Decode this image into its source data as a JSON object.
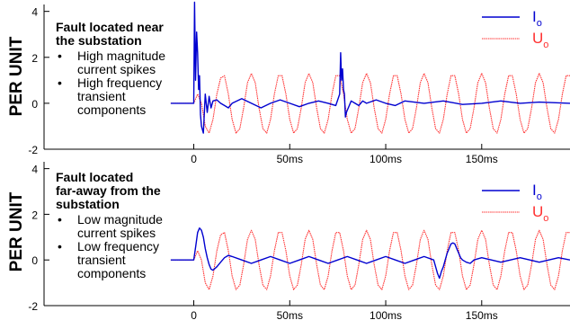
{
  "chart_data": [
    {
      "type": "line",
      "ylabel": "PER UNIT",
      "xlabel": "",
      "ylim": [
        -2,
        4.3
      ],
      "xlim": [
        -78,
        196
      ],
      "y_ticks": [
        "4",
        "2",
        "0",
        "-2"
      ],
      "y_tick_values": [
        4,
        2,
        0,
        -2
      ],
      "x_ticks": [
        "0",
        "50ms",
        "100ms",
        "150ms"
      ],
      "x_tick_values": [
        0,
        50,
        100,
        150
      ],
      "grid": false,
      "legend_position": "top-right",
      "annotation": {
        "heading": [
          "Fault located near",
          "the substation"
        ],
        "bullets": [
          [
            "High magnitude",
            "current spikes"
          ],
          [
            "High frequency",
            "transient",
            "components"
          ]
        ]
      },
      "series": [
        {
          "name": "Io",
          "name_main": "I",
          "name_sub": "o",
          "color": "#0000d0",
          "style": "solid",
          "x": [
            -12,
            -1,
            0,
            0.4,
            0.9,
            1.5,
            2,
            2.5,
            3,
            3.5,
            4,
            5,
            6,
            7,
            8,
            9,
            10,
            12,
            14,
            16,
            18,
            20,
            25,
            30,
            35,
            40,
            45,
            50,
            55,
            60,
            65,
            70,
            74,
            76,
            76.5,
            77,
            77.5,
            78,
            78.5,
            79,
            79.5,
            80,
            81,
            82,
            84,
            86,
            88,
            90,
            95,
            100,
            105,
            110,
            120,
            130,
            140,
            150,
            160,
            170,
            180,
            196
          ],
          "y": [
            0,
            0,
            0,
            4.4,
            1.0,
            3.1,
            2.2,
            0.6,
            1.2,
            -0.5,
            -1.0,
            -1.3,
            0.4,
            -0.4,
            0.3,
            -0.2,
            0.1,
            0.15,
            0,
            -0.1,
            -0.2,
            0,
            0.2,
            0,
            -0.2,
            0,
            0.15,
            0,
            -0.15,
            0,
            0.1,
            0,
            -0.1,
            0.4,
            2.2,
            1.0,
            1.5,
            0.6,
            0.4,
            -0.6,
            -0.4,
            -0.3,
            -0.1,
            0.1,
            0,
            -0.1,
            0.1,
            0,
            0.15,
            0,
            -0.1,
            0.1,
            0,
            0.1,
            -0.05,
            0,
            0.1,
            0,
            0.05,
            0
          ]
        },
        {
          "name": "Uo",
          "name_main": "U",
          "name_sub": "o",
          "color": "#ff3030",
          "style": "dotted",
          "x": [
            -12,
            -4,
            0,
            2,
            4,
            6,
            8,
            10,
            12,
            14,
            16,
            18,
            20,
            22,
            24,
            26,
            28,
            30,
            32,
            34,
            36,
            38,
            40,
            42,
            44,
            46,
            48,
            50,
            52,
            54,
            56,
            58,
            60,
            62,
            64,
            66,
            68,
            70,
            72,
            74,
            76,
            78,
            80,
            82,
            84,
            86,
            88,
            90,
            92,
            94,
            96,
            98,
            100,
            102,
            104,
            106,
            108,
            110,
            112,
            114,
            116,
            118,
            120,
            122,
            124,
            126,
            128,
            130,
            132,
            134,
            136,
            138,
            140,
            142,
            144,
            146,
            148,
            150,
            152,
            154,
            156,
            158,
            160,
            162,
            164,
            166,
            168,
            170,
            172,
            174,
            176,
            178,
            180,
            182,
            184,
            186,
            188,
            190,
            192,
            194,
            196
          ],
          "y": [
            0,
            0,
            0,
            0.4,
            0.0,
            -1.0,
            -1.3,
            -0.7,
            0.4,
            1.1,
            1.2,
            0.4,
            -0.7,
            -1.3,
            -1.1,
            -0.2,
            0.9,
            1.3,
            0.9,
            -0.2,
            -1.1,
            -1.3,
            -0.7,
            0.4,
            1.2,
            1.2,
            0.4,
            -0.7,
            -1.3,
            -1.1,
            -0.2,
            0.9,
            1.3,
            0.9,
            -0.2,
            -1.1,
            -1.3,
            -0.7,
            0.4,
            1.2,
            1.2,
            0.4,
            -0.7,
            -1.3,
            -1.1,
            -0.2,
            0.9,
            1.3,
            0.9,
            -0.2,
            -1.1,
            -1.3,
            -0.7,
            0.4,
            1.2,
            1.2,
            0.4,
            -0.7,
            -1.3,
            -1.1,
            -0.2,
            0.9,
            1.3,
            0.9,
            -0.2,
            -1.1,
            -1.3,
            -0.7,
            0.4,
            1.2,
            1.2,
            0.4,
            -0.7,
            -1.3,
            -1.1,
            -0.2,
            0.9,
            1.3,
            0.9,
            -0.2,
            -1.1,
            -1.3,
            -0.7,
            0.4,
            1.2,
            1.2,
            0.4,
            -0.7,
            -1.3,
            -1.1,
            -0.2,
            0.9,
            1.3,
            0.9,
            -0.2,
            -1.1,
            -1.3,
            -0.7,
            0.4,
            1.2,
            1.2
          ]
        }
      ]
    },
    {
      "type": "line",
      "ylabel": "PER UNIT",
      "xlabel": "",
      "ylim": [
        -2,
        4.3
      ],
      "xlim": [
        -78,
        196
      ],
      "y_ticks": [
        "4",
        "2",
        "0",
        "-2"
      ],
      "y_tick_values": [
        4,
        2,
        0,
        -2
      ],
      "x_ticks": [
        "0",
        "50ms",
        "100ms",
        "150ms"
      ],
      "x_tick_values": [
        0,
        50,
        100,
        150
      ],
      "grid": false,
      "legend_position": "top-right",
      "annotation": {
        "heading": [
          "Fault located",
          "far-away from the",
          "substation"
        ],
        "bullets": [
          [
            "Low magnitude",
            "current spikes"
          ],
          [
            "Low frequency",
            "transient",
            "components"
          ]
        ]
      },
      "series": [
        {
          "name": "Io",
          "name_main": "I",
          "name_sub": "o",
          "color": "#0000d0",
          "style": "solid",
          "x": [
            -12,
            -1,
            0,
            1,
            2,
            3,
            4,
            5,
            6,
            7,
            8,
            9,
            10,
            12,
            14,
            16,
            18,
            20,
            25,
            30,
            35,
            40,
            45,
            50,
            55,
            60,
            65,
            70,
            75,
            80,
            85,
            90,
            95,
            100,
            105,
            110,
            115,
            120,
            125,
            127,
            128,
            129,
            130,
            131,
            132,
            133,
            134,
            135,
            136,
            137,
            138,
            139,
            140,
            142,
            144,
            146,
            150,
            155,
            160,
            165,
            170,
            175,
            180,
            185,
            190,
            196
          ],
          "y": [
            0,
            0,
            0,
            0.6,
            1.2,
            1.4,
            1.3,
            1.0,
            0.5,
            0.1,
            -0.2,
            -0.4,
            -0.45,
            -0.3,
            -0.1,
            0.1,
            0.2,
            0.15,
            0,
            -0.15,
            0,
            0.15,
            0,
            -0.15,
            0,
            0.15,
            0,
            -0.15,
            0,
            0.15,
            0,
            -0.15,
            0,
            0.15,
            0,
            -0.15,
            0,
            0.15,
            0,
            -0.6,
            -0.8,
            -0.5,
            -0.3,
            0.0,
            0.3,
            0.5,
            0.7,
            0.75,
            0.7,
            0.5,
            0.3,
            0.1,
            0.0,
            -0.1,
            -0.15,
            0.0,
            0.1,
            0.0,
            -0.1,
            0.0,
            0.1,
            0.0,
            -0.1,
            0.0,
            0.1,
            0
          ]
        },
        {
          "name": "Uo",
          "name_main": "U",
          "name_sub": "o",
          "color": "#ff3030",
          "style": "dotted",
          "x": [
            -12,
            -4,
            0,
            2,
            4,
            6,
            8,
            10,
            12,
            14,
            16,
            18,
            20,
            22,
            24,
            26,
            28,
            30,
            32,
            34,
            36,
            38,
            40,
            42,
            44,
            46,
            48,
            50,
            52,
            54,
            56,
            58,
            60,
            62,
            64,
            66,
            68,
            70,
            72,
            74,
            76,
            78,
            80,
            82,
            84,
            86,
            88,
            90,
            92,
            94,
            96,
            98,
            100,
            102,
            104,
            106,
            108,
            110,
            112,
            114,
            116,
            118,
            120,
            122,
            124,
            126,
            128,
            130,
            132,
            134,
            136,
            138,
            140,
            142,
            144,
            146,
            148,
            150,
            152,
            154,
            156,
            158,
            160,
            162,
            164,
            166,
            168,
            170,
            172,
            174,
            176,
            178,
            180,
            182,
            184,
            186,
            188,
            190,
            192,
            194,
            196
          ],
          "y": [
            0,
            0,
            0,
            0.4,
            0.0,
            -1.0,
            -1.3,
            -0.7,
            0.4,
            1.1,
            1.2,
            0.4,
            -0.7,
            -1.3,
            -1.1,
            -0.2,
            0.9,
            1.3,
            0.9,
            -0.2,
            -1.1,
            -1.3,
            -0.7,
            0.4,
            1.2,
            1.2,
            0.4,
            -0.7,
            -1.3,
            -1.1,
            -0.2,
            0.9,
            1.3,
            0.9,
            -0.2,
            -1.1,
            -1.3,
            -0.7,
            0.4,
            1.2,
            1.2,
            0.4,
            -0.7,
            -1.3,
            -1.1,
            -0.2,
            0.9,
            1.3,
            0.9,
            -0.2,
            -1.1,
            -1.3,
            -0.7,
            0.4,
            1.2,
            1.2,
            0.4,
            -0.7,
            -1.3,
            -1.1,
            -0.2,
            0.9,
            1.3,
            0.9,
            -0.2,
            -1.1,
            -1.3,
            -0.7,
            0.4,
            1.2,
            1.2,
            0.4,
            -0.7,
            -1.3,
            -1.1,
            -0.2,
            0.9,
            1.3,
            0.9,
            -0.2,
            -1.1,
            -1.3,
            -0.7,
            0.4,
            1.2,
            1.2,
            0.4,
            -0.7,
            -1.3,
            -1.1,
            -0.2,
            0.9,
            1.3,
            0.9,
            -0.2,
            -1.1,
            -1.3,
            -0.7,
            0.4,
            1.2,
            1.2
          ]
        }
      ]
    }
  ]
}
